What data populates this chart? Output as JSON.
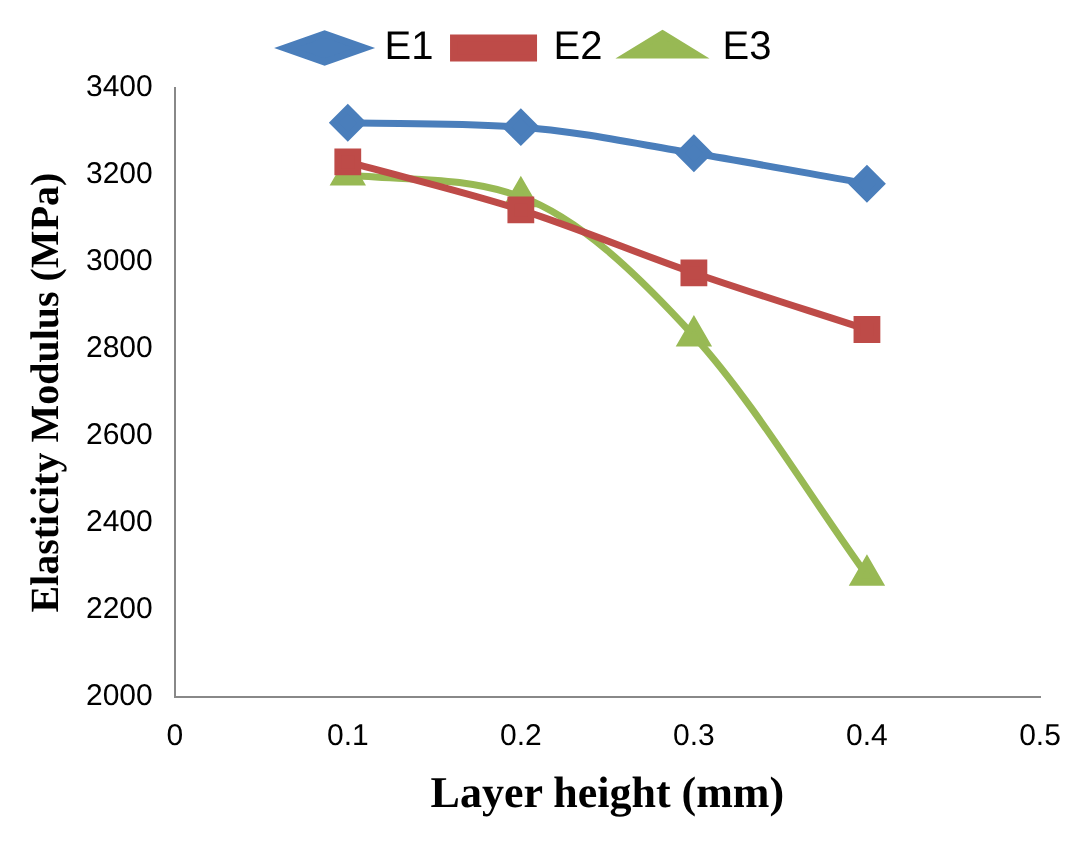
{
  "chart_data": {
    "type": "line",
    "xlabel": "Layer height (mm)",
    "ylabel": "Elasticity Modulus (MPa)",
    "x": [
      0.1,
      0.2,
      0.3,
      0.4
    ],
    "series": [
      {
        "name": "E1",
        "color": "#4a7ebb",
        "marker": "diamond",
        "values": [
          3320,
          3310,
          3250,
          3180
        ]
      },
      {
        "name": "E2",
        "color": "#be4b48",
        "marker": "square",
        "values": [
          3230,
          3120,
          2975,
          2845
        ]
      },
      {
        "name": "E3",
        "color": "#98b954",
        "marker": "triangle",
        "values": [
          3200,
          3150,
          2830,
          2280
        ]
      }
    ],
    "xlim": [
      0,
      0.5
    ],
    "xticks": [
      0,
      0.1,
      0.2,
      0.3,
      0.4,
      0.5
    ],
    "ylim": [
      2000,
      3400
    ],
    "yticks": [
      2000,
      2200,
      2400,
      2600,
      2800,
      3000,
      3200,
      3400
    ],
    "grid": false,
    "legend": "top",
    "line_style": "solid"
  }
}
